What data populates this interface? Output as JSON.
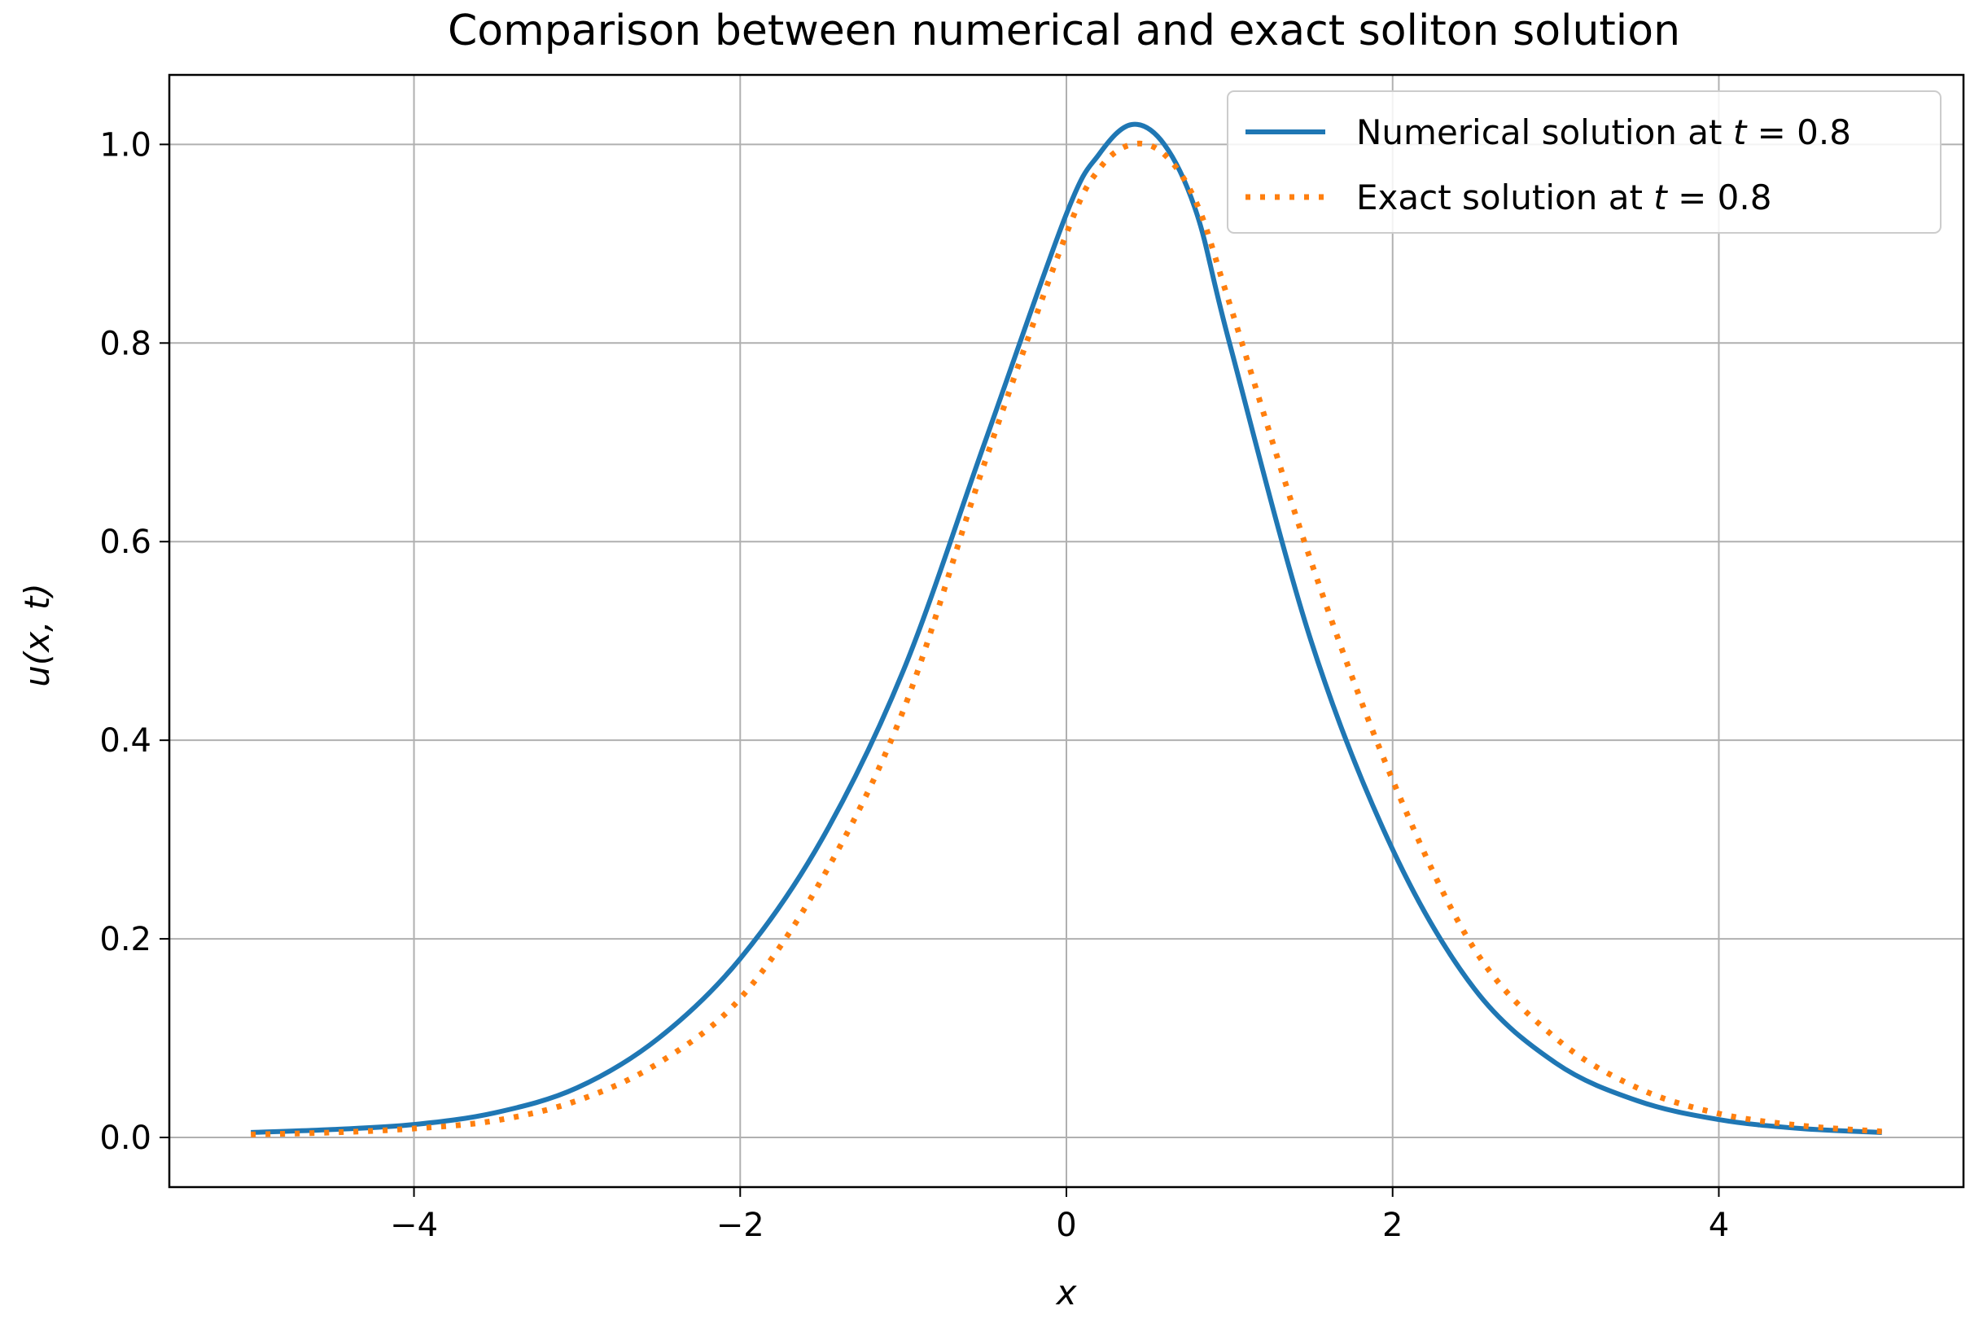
{
  "chart_data": {
    "type": "line",
    "title": "Comparison between numerical and exact soliton solution",
    "xlabel": "x",
    "ylabel": "u(x, t)",
    "xlim": [
      -5.5,
      5.5
    ],
    "ylim": [
      -0.05,
      1.07
    ],
    "x_ticks": [
      -4,
      -2,
      0,
      2,
      4
    ],
    "x_tick_labels": [
      "−4",
      "−2",
      "0",
      "2",
      "4"
    ],
    "y_ticks": [
      0.0,
      0.2,
      0.4,
      0.6,
      0.8,
      1.0
    ],
    "y_tick_labels": [
      "0.0",
      "0.2",
      "0.4",
      "0.6",
      "0.8",
      "1.0"
    ],
    "grid": true,
    "legend_position": "top-right",
    "series": [
      {
        "name": "Numerical solution at t = 0.8",
        "legend_prefix": "Numerical solution at ",
        "legend_var": "t",
        "legend_suffix": " = 0.8",
        "color": "#1f77b4",
        "style": "solid",
        "x": [
          -5.0,
          -4.5,
          -4.0,
          -3.5,
          -3.0,
          -2.5,
          -2.0,
          -1.5,
          -1.0,
          -0.5,
          0.0,
          0.2,
          0.4,
          0.6,
          0.8,
          1.0,
          1.5,
          2.0,
          2.5,
          3.0,
          3.5,
          4.0,
          4.5,
          5.0
        ],
        "y": [
          0.005,
          0.008,
          0.013,
          0.025,
          0.05,
          0.1,
          0.18,
          0.3,
          0.47,
          0.7,
          0.93,
          0.99,
          1.02,
          1.0,
          0.93,
          0.8,
          0.5,
          0.29,
          0.15,
          0.075,
          0.037,
          0.018,
          0.009,
          0.005
        ]
      },
      {
        "name": "Exact solution at t = 0.8",
        "legend_prefix": "Exact solution at ",
        "legend_var": "t",
        "legend_suffix": " = 0.8",
        "color": "#ff7f0e",
        "style": "dotted",
        "x": [
          -5.0,
          -4.5,
          -4.0,
          -3.5,
          -3.0,
          -2.5,
          -2.0,
          -1.5,
          -1.0,
          -0.5,
          0.0,
          0.2,
          0.4,
          0.6,
          0.8,
          1.0,
          1.5,
          2.0,
          2.5,
          3.0,
          3.5,
          4.0,
          4.5,
          5.0
        ],
        "y": [
          0.003,
          0.005,
          0.009,
          0.017,
          0.037,
          0.075,
          0.14,
          0.26,
          0.43,
          0.68,
          0.91,
          0.975,
          1.0,
          0.99,
          0.94,
          0.84,
          0.58,
          0.36,
          0.19,
          0.1,
          0.05,
          0.024,
          0.012,
          0.006
        ]
      }
    ]
  }
}
